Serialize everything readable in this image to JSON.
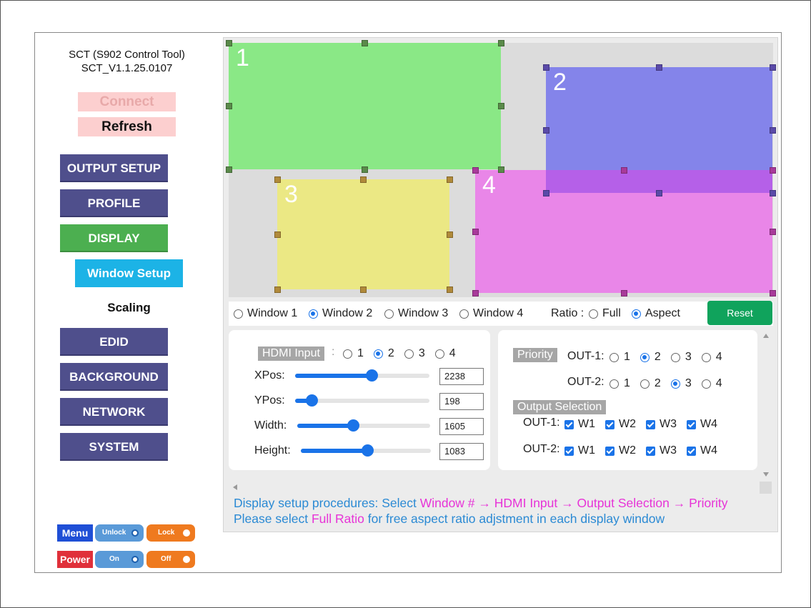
{
  "app": {
    "title": "SCT (S902 Control Tool)",
    "version": "SCT_V1.1.25.0107"
  },
  "connection": {
    "connect_label": "Connect",
    "refresh_label": "Refresh"
  },
  "nav": {
    "output_setup": "OUTPUT SETUP",
    "profile": "PROFILE",
    "display": "DISPLAY",
    "window_setup": "Window Setup",
    "scaling": "Scaling",
    "edid": "EDID",
    "background": "BACKGROUND",
    "network": "NETWORK",
    "system": "SYSTEM"
  },
  "controls": {
    "menu_label": "Menu",
    "unlock_label": "Unlock",
    "lock_label": "Lock",
    "power_label": "Power",
    "on_label": "On",
    "off_label": "Off"
  },
  "windows": [
    {
      "label": "1",
      "color": "#8ae886"
    },
    {
      "label": "2",
      "color": "#8484ea"
    },
    {
      "label": "3",
      "color": "#ebe884"
    },
    {
      "label": "4",
      "color": "#e986e8"
    }
  ],
  "window_select": {
    "options": [
      "Window 1",
      "Window 2",
      "Window 3",
      "Window 4"
    ],
    "selected": "Window 2",
    "ratio_label": "Ratio :",
    "ratio_options": [
      "Full",
      "Aspect"
    ],
    "ratio_selected": "Aspect",
    "reset_label": "Reset"
  },
  "window_params": {
    "hdmi_label": "HDMI Input",
    "hdmi_sep": ":",
    "hdmi_options": [
      "1",
      "2",
      "3",
      "4"
    ],
    "hdmi_selected": "2",
    "xpos_label": "XPos:",
    "xpos_value": "2238",
    "xpos_fraction": 0.57,
    "ypos_label": "YPos:",
    "ypos_value": "198",
    "ypos_fraction": 0.12,
    "width_label": "Width:",
    "width_value": "1605",
    "width_fraction": 0.42,
    "height_label": "Height:",
    "height_value": "1083",
    "height_fraction": 0.51
  },
  "priority": {
    "label": "Priority",
    "out1_label": "OUT-1:",
    "out2_label": "OUT-2:",
    "options": [
      "1",
      "2",
      "3",
      "4"
    ],
    "out1_selected": "2",
    "out2_selected": "3"
  },
  "output_selection": {
    "label": "Output Selection",
    "out1_label": "OUT-1:",
    "out2_label": "OUT-2:",
    "windows": [
      "W1",
      "W2",
      "W3",
      "W4"
    ]
  },
  "notes": {
    "line1_a": "Display setup procedures: Select ",
    "line1_b": "Window # → HDMI Input → Output Selection → Priority",
    "line2_a": "Please select ",
    "line2_b": "Full Ratio",
    "line2_c": " for free aspect ratio adjstment in each display window"
  },
  "colors": {
    "nav": "#4f4f8c",
    "active": "#4caf50",
    "sub": "#1cb3e6",
    "accent": "#1a73e8",
    "reset": "#10a35c",
    "note": "#2b8ad4",
    "highlight": "#e733d7"
  }
}
